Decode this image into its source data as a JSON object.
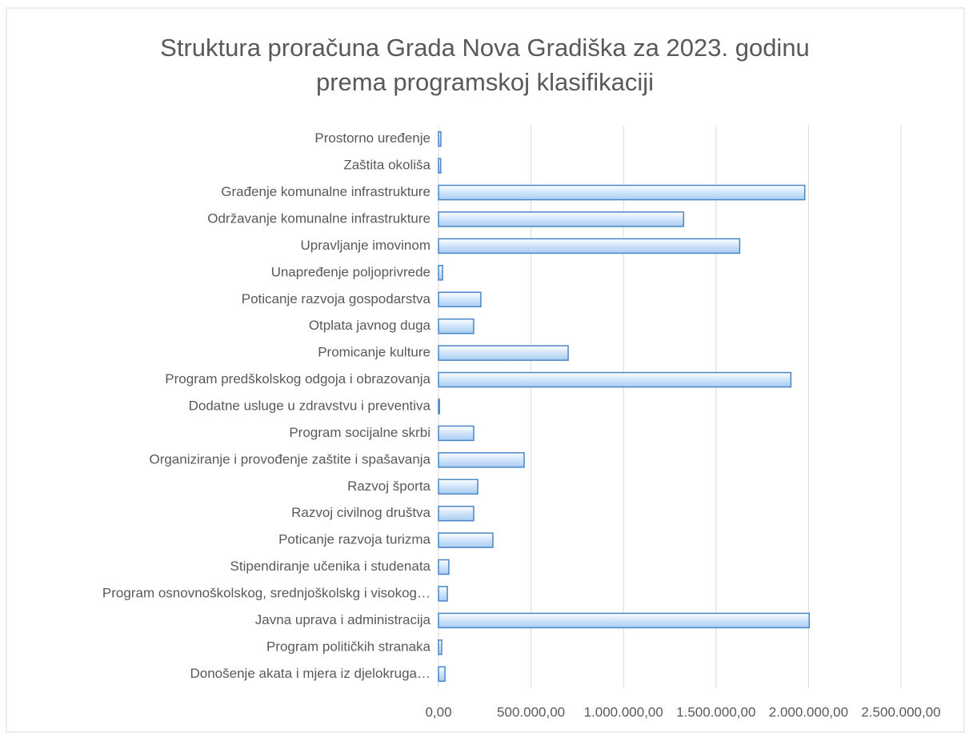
{
  "chart_data": {
    "type": "bar",
    "orientation": "horizontal",
    "title": [
      "Struktura proračuna Grada Nova Gradiška za 2023. godinu",
      "prema programskoj klasifikaciji"
    ],
    "categories": [
      "Prostorno uređenje",
      "Zaštita okoliša",
      "Građenje komunalne infrastrukture",
      "Održavanje komunalne infrastrukture",
      "Upravljanje imovinom",
      "Unapređenje poljoprivrede",
      "Poticanje razvoja gospodarstva",
      "Otplata javnog duga",
      "Promicanje kulture",
      "Program predškolskog odgoja i obrazovanja",
      "Dodatne usluge u zdravstvu i preventiva",
      "Program socijalne skrbi",
      "Organiziranje i provođenje zaštite i spašavanja",
      "Razvoj športa",
      "Razvoj civilnog društva",
      "Poticanje razvoja turizma",
      "Stipendiranje učenika i studenata",
      "Program osnovnoškolskog, srednjoškolskg i visokog…",
      "Javna uprava i administracija",
      "Program političkih stranaka",
      "Donošenje akata i mjera iz djelokruga…"
    ],
    "values": [
      13000,
      12000,
      1980000,
      1325000,
      1628000,
      22000,
      229000,
      190000,
      701000,
      1905000,
      5000,
      190000,
      463000,
      212000,
      190000,
      294000,
      56000,
      48000,
      2004000,
      17000,
      35000
    ],
    "color": "#cfe3fa",
    "edge_color": "#4a86c6",
    "xlim": [
      0,
      2500000
    ],
    "xticks": [
      {
        "value": 0,
        "label": "0,00"
      },
      {
        "value": 500000,
        "label": "500.000,00"
      },
      {
        "value": 1000000,
        "label": "1.000.000,00"
      },
      {
        "value": 1500000,
        "label": "1.500.000,00"
      },
      {
        "value": 2000000,
        "label": "2.000.000,00"
      },
      {
        "value": 2500000,
        "label": "2.500.000,00"
      }
    ],
    "grid": true
  }
}
